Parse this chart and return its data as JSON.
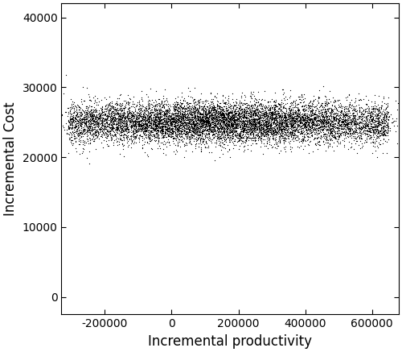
{
  "title": "",
  "xlabel": "Incremental productivity",
  "ylabel": "Incremental Cost",
  "xlim": [
    -330000,
    680000
  ],
  "ylim": [
    -2500,
    42000
  ],
  "xticks": [
    -200000,
    0,
    200000,
    400000,
    600000
  ],
  "yticks": [
    0,
    10000,
    20000,
    30000,
    40000
  ],
  "n_points": 10000,
  "x_center": 150000,
  "x_std": 220000,
  "y_center": 25000,
  "y_std": 1500,
  "point_color": "black",
  "point_size": 0.8,
  "background_color": "white",
  "random_seed": 42,
  "figsize": [
    5.0,
    4.37
  ],
  "dpi": 100,
  "xlabel_fontsize": 12,
  "ylabel_fontsize": 12,
  "tick_fontsize": 10
}
